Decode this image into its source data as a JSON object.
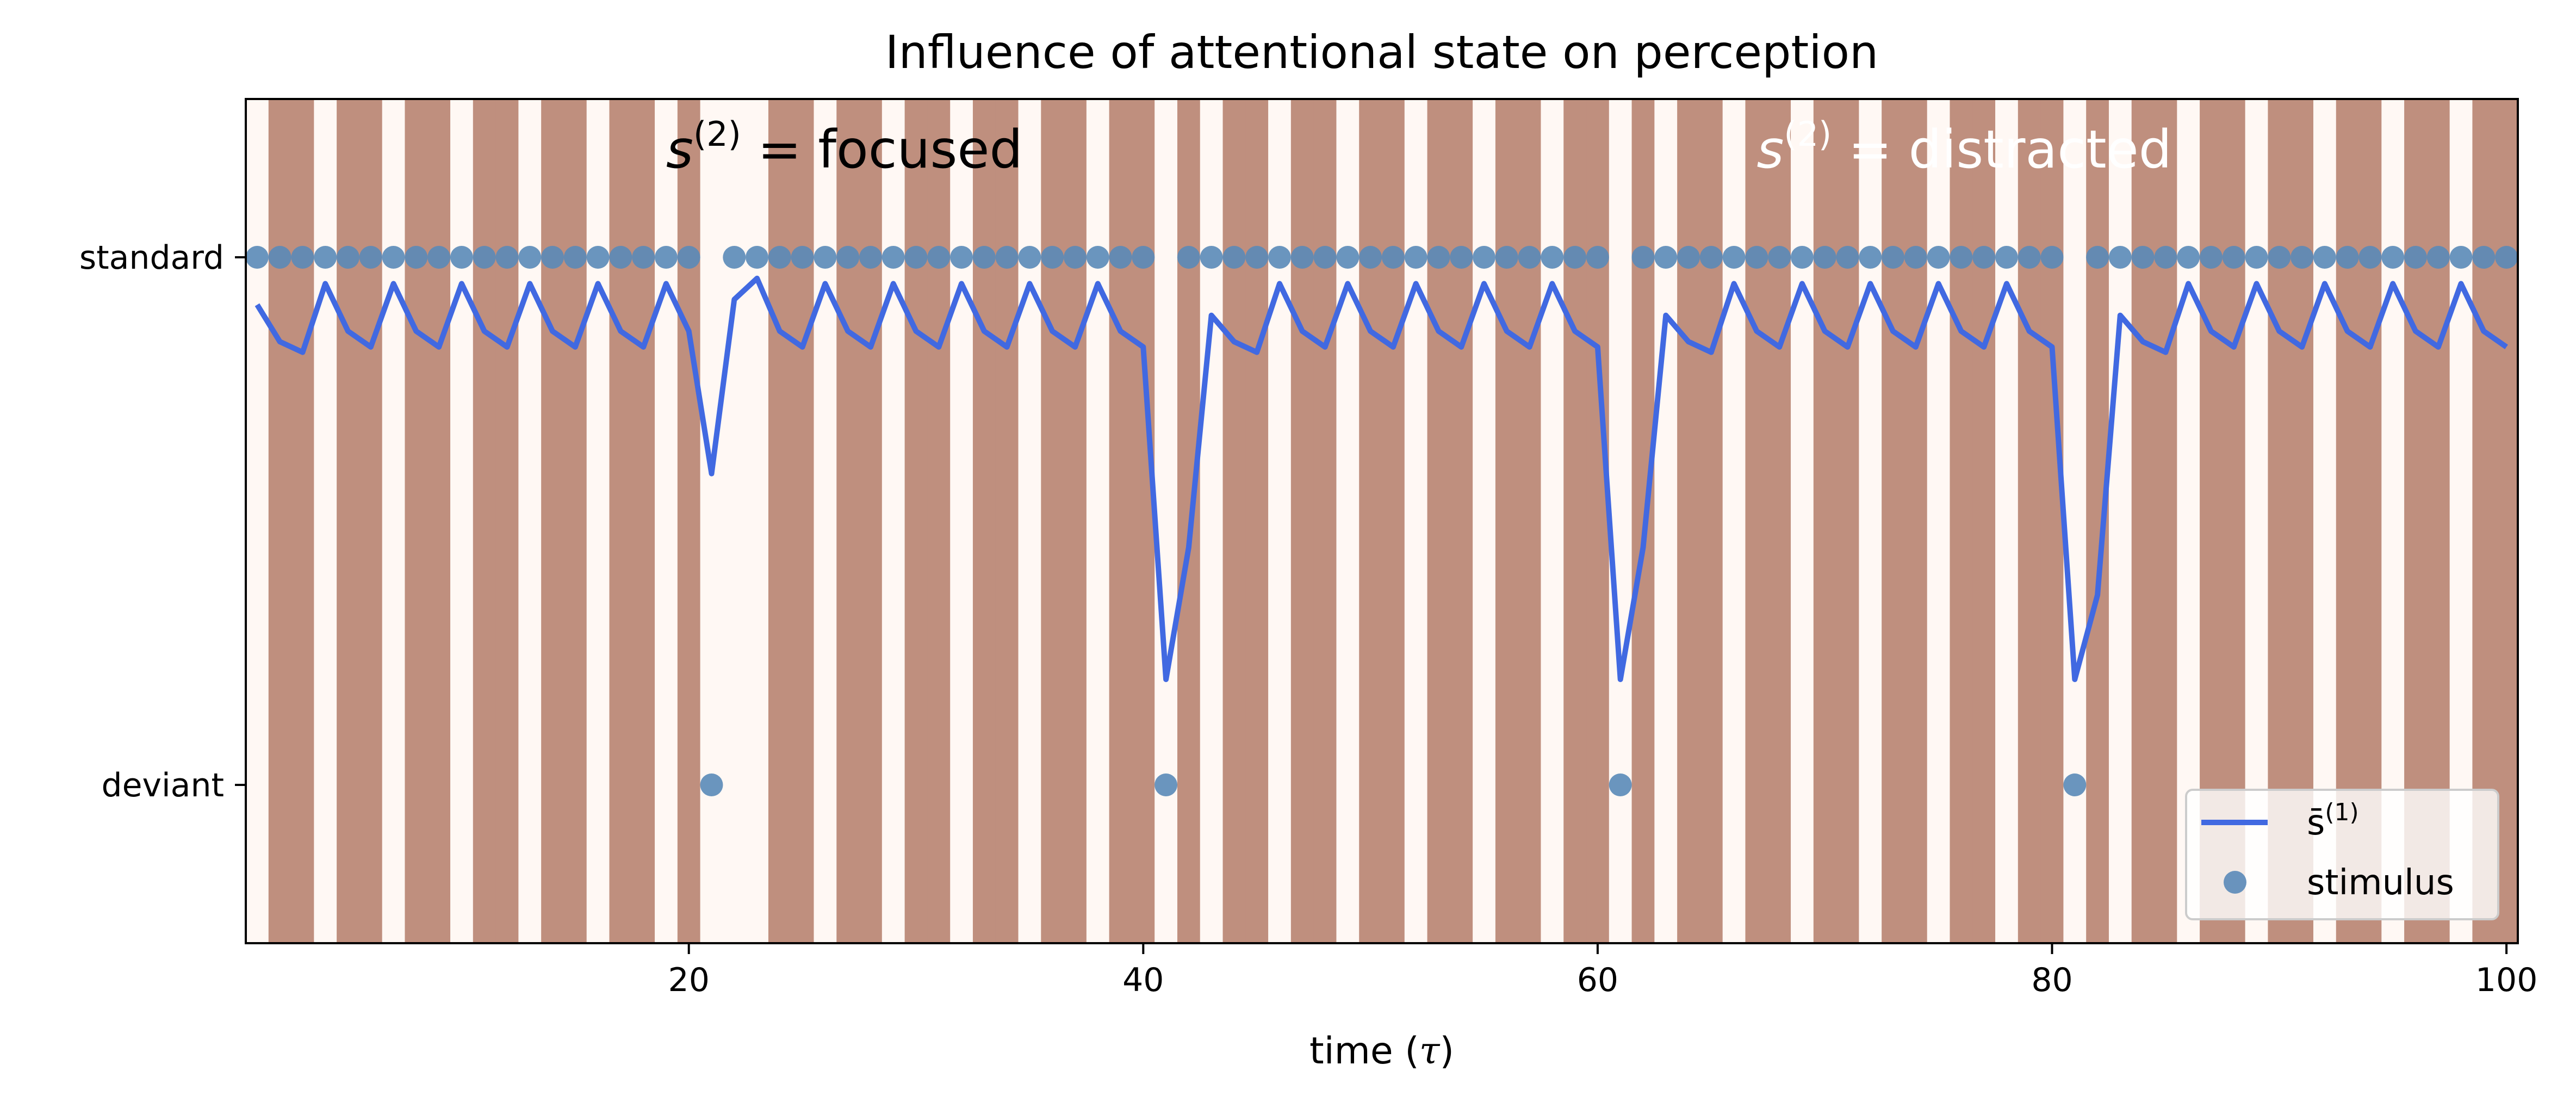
{
  "chart_data": {
    "type": "line",
    "title": "Influence of attentional state on perception",
    "xlabel_text": "time (",
    "xlabel_symbol": "τ",
    "xlabel_close": ")",
    "xlim": [
      0.5,
      100.5
    ],
    "ylim": [
      -0.3,
      1.3
    ],
    "x_ticks": [
      20,
      40,
      60,
      80,
      100
    ],
    "y_ticks": [
      {
        "value": 1,
        "label": "standard"
      },
      {
        "value": 0,
        "label": "deviant"
      }
    ],
    "grid": false,
    "background_colors": {
      "focused": "#fff8f4",
      "distracted": "#bf8f7e"
    },
    "attention_bands": [
      {
        "x": 1,
        "state": "focused"
      },
      {
        "x": 2,
        "state": "distracted"
      },
      {
        "x": 3,
        "state": "distracted"
      },
      {
        "x": 4,
        "state": "focused"
      },
      {
        "x": 5,
        "state": "distracted"
      },
      {
        "x": 6,
        "state": "distracted"
      },
      {
        "x": 7,
        "state": "focused"
      },
      {
        "x": 8,
        "state": "distracted"
      },
      {
        "x": 9,
        "state": "distracted"
      },
      {
        "x": 10,
        "state": "focused"
      },
      {
        "x": 11,
        "state": "distracted"
      },
      {
        "x": 12,
        "state": "distracted"
      },
      {
        "x": 13,
        "state": "focused"
      },
      {
        "x": 14,
        "state": "distracted"
      },
      {
        "x": 15,
        "state": "distracted"
      },
      {
        "x": 16,
        "state": "focused"
      },
      {
        "x": 17,
        "state": "distracted"
      },
      {
        "x": 18,
        "state": "distracted"
      },
      {
        "x": 19,
        "state": "focused"
      },
      {
        "x": 20,
        "state": "distracted"
      },
      {
        "x": 21,
        "state": "focused"
      },
      {
        "x": 22,
        "state": "focused"
      },
      {
        "x": 23,
        "state": "focused"
      },
      {
        "x": 24,
        "state": "distracted"
      },
      {
        "x": 25,
        "state": "distracted"
      },
      {
        "x": 26,
        "state": "focused"
      },
      {
        "x": 27,
        "state": "distracted"
      },
      {
        "x": 28,
        "state": "distracted"
      },
      {
        "x": 29,
        "state": "focused"
      },
      {
        "x": 30,
        "state": "distracted"
      },
      {
        "x": 31,
        "state": "distracted"
      },
      {
        "x": 32,
        "state": "focused"
      },
      {
        "x": 33,
        "state": "distracted"
      },
      {
        "x": 34,
        "state": "distracted"
      },
      {
        "x": 35,
        "state": "focused"
      },
      {
        "x": 36,
        "state": "distracted"
      },
      {
        "x": 37,
        "state": "distracted"
      },
      {
        "x": 38,
        "state": "focused"
      },
      {
        "x": 39,
        "state": "distracted"
      },
      {
        "x": 40,
        "state": "distracted"
      },
      {
        "x": 41,
        "state": "focused"
      },
      {
        "x": 42,
        "state": "distracted"
      },
      {
        "x": 43,
        "state": "focused"
      },
      {
        "x": 44,
        "state": "distracted"
      },
      {
        "x": 45,
        "state": "distracted"
      },
      {
        "x": 46,
        "state": "focused"
      },
      {
        "x": 47,
        "state": "distracted"
      },
      {
        "x": 48,
        "state": "distracted"
      },
      {
        "x": 49,
        "state": "focused"
      },
      {
        "x": 50,
        "state": "distracted"
      },
      {
        "x": 51,
        "state": "distracted"
      },
      {
        "x": 52,
        "state": "focused"
      },
      {
        "x": 53,
        "state": "distracted"
      },
      {
        "x": 54,
        "state": "distracted"
      },
      {
        "x": 55,
        "state": "focused"
      },
      {
        "x": 56,
        "state": "distracted"
      },
      {
        "x": 57,
        "state": "distracted"
      },
      {
        "x": 58,
        "state": "focused"
      },
      {
        "x": 59,
        "state": "distracted"
      },
      {
        "x": 60,
        "state": "distracted"
      },
      {
        "x": 61,
        "state": "focused"
      },
      {
        "x": 62,
        "state": "distracted"
      },
      {
        "x": 63,
        "state": "focused"
      },
      {
        "x": 64,
        "state": "distracted"
      },
      {
        "x": 65,
        "state": "distracted"
      },
      {
        "x": 66,
        "state": "focused"
      },
      {
        "x": 67,
        "state": "distracted"
      },
      {
        "x": 68,
        "state": "distracted"
      },
      {
        "x": 69,
        "state": "focused"
      },
      {
        "x": 70,
        "state": "distracted"
      },
      {
        "x": 71,
        "state": "distracted"
      },
      {
        "x": 72,
        "state": "focused"
      },
      {
        "x": 73,
        "state": "distracted"
      },
      {
        "x": 74,
        "state": "distracted"
      },
      {
        "x": 75,
        "state": "focused"
      },
      {
        "x": 76,
        "state": "distracted"
      },
      {
        "x": 77,
        "state": "distracted"
      },
      {
        "x": 78,
        "state": "focused"
      },
      {
        "x": 79,
        "state": "distracted"
      },
      {
        "x": 80,
        "state": "distracted"
      },
      {
        "x": 81,
        "state": "focused"
      },
      {
        "x": 82,
        "state": "distracted"
      },
      {
        "x": 83,
        "state": "focused"
      },
      {
        "x": 84,
        "state": "distracted"
      },
      {
        "x": 85,
        "state": "distracted"
      },
      {
        "x": 86,
        "state": "focused"
      },
      {
        "x": 87,
        "state": "distracted"
      },
      {
        "x": 88,
        "state": "distracted"
      },
      {
        "x": 89,
        "state": "focused"
      },
      {
        "x": 90,
        "state": "distracted"
      },
      {
        "x": 91,
        "state": "distracted"
      },
      {
        "x": 92,
        "state": "focused"
      },
      {
        "x": 93,
        "state": "distracted"
      },
      {
        "x": 94,
        "state": "distracted"
      },
      {
        "x": 95,
        "state": "focused"
      },
      {
        "x": 96,
        "state": "distracted"
      },
      {
        "x": 97,
        "state": "distracted"
      },
      {
        "x": 98,
        "state": "focused"
      },
      {
        "x": 99,
        "state": "distracted"
      },
      {
        "x": 100,
        "state": "distracted"
      }
    ],
    "series": [
      {
        "name_main": "s̄",
        "name_sup": "(1)",
        "type": "line",
        "color": "#4169e1",
        "x": [
          1,
          2,
          3,
          4,
          5,
          6,
          7,
          8,
          9,
          10,
          11,
          12,
          13,
          14,
          15,
          16,
          17,
          18,
          19,
          20,
          21,
          22,
          23,
          24,
          25,
          26,
          27,
          28,
          29,
          30,
          31,
          32,
          33,
          34,
          35,
          36,
          37,
          38,
          39,
          40,
          41,
          42,
          43,
          44,
          45,
          46,
          47,
          48,
          49,
          50,
          51,
          52,
          53,
          54,
          55,
          56,
          57,
          58,
          59,
          60,
          61,
          62,
          63,
          64,
          65,
          66,
          67,
          68,
          69,
          70,
          71,
          72,
          73,
          74,
          75,
          76,
          77,
          78,
          79,
          80,
          81,
          82,
          83,
          84,
          85,
          86,
          87,
          88,
          89,
          90,
          91,
          92,
          93,
          94,
          95,
          96,
          97,
          98,
          99,
          100
        ],
        "y": [
          0.91,
          0.84,
          0.82,
          0.95,
          0.86,
          0.83,
          0.95,
          0.86,
          0.83,
          0.95,
          0.86,
          0.83,
          0.95,
          0.86,
          0.83,
          0.95,
          0.86,
          0.83,
          0.95,
          0.86,
          0.59,
          0.92,
          0.96,
          0.86,
          0.83,
          0.95,
          0.86,
          0.83,
          0.95,
          0.86,
          0.83,
          0.95,
          0.86,
          0.83,
          0.95,
          0.86,
          0.83,
          0.95,
          0.86,
          0.83,
          0.2,
          0.45,
          0.89,
          0.84,
          0.82,
          0.95,
          0.86,
          0.83,
          0.95,
          0.86,
          0.83,
          0.95,
          0.86,
          0.83,
          0.95,
          0.86,
          0.83,
          0.95,
          0.86,
          0.83,
          0.2,
          0.45,
          0.89,
          0.84,
          0.82,
          0.95,
          0.86,
          0.83,
          0.95,
          0.86,
          0.83,
          0.95,
          0.86,
          0.83,
          0.95,
          0.86,
          0.83,
          0.95,
          0.86,
          0.83,
          0.2,
          0.36,
          0.89,
          0.84,
          0.82,
          0.95,
          0.86,
          0.83,
          0.95,
          0.86,
          0.83,
          0.95,
          0.86,
          0.83,
          0.95,
          0.86,
          0.83,
          0.95,
          0.86,
          0.83
        ]
      },
      {
        "name": "stimulus",
        "type": "scatter",
        "color": "#5a8ab8",
        "deviant_at": [
          21,
          41,
          61,
          81
        ],
        "standard_value": 1,
        "deviant_value": 0,
        "x_range": [
          1,
          100
        ]
      }
    ],
    "annotations": [
      {
        "x": 19,
        "y": 1.17,
        "main": "s",
        "sup": "(2)",
        "rest": " = focused",
        "color": "#000000"
      },
      {
        "x": 67,
        "y": 1.17,
        "main": "s",
        "sup": "(2)",
        "rest": " = distracted",
        "color": "#ffffff"
      }
    ],
    "legend": {
      "placement": "lower-right"
    }
  }
}
